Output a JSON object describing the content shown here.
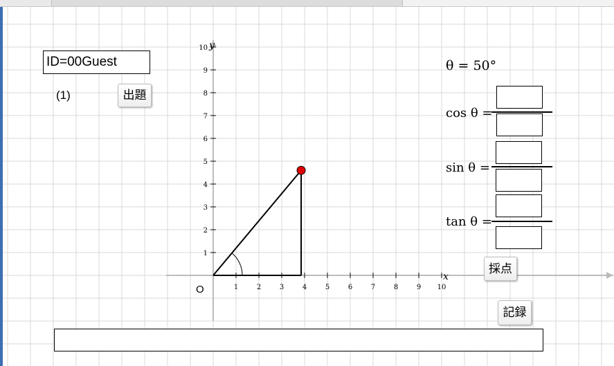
{
  "browser": {
    "tab_title": "",
    "right_text": ""
  },
  "app": {
    "user_id": "ID=00Guest",
    "question_number": "(1)",
    "new_question_label": "出題",
    "grade_label": "採点",
    "record_label": "記録",
    "status_text": ""
  },
  "problem": {
    "theta_text": "θ = 50°",
    "theta_degrees": 50,
    "labels": {
      "cos": "cos θ =",
      "sin": "sin θ =",
      "tan": "tan θ ="
    },
    "answers": {
      "cos_numerator": "",
      "cos_denominator": "",
      "sin_numerator": "",
      "sin_denominator": "",
      "tan_numerator": "",
      "tan_denominator": ""
    }
  },
  "graph": {
    "x_label": "x",
    "y_label": "y",
    "origin_label": "O",
    "x_ticks": [
      "1",
      "2",
      "3",
      "4",
      "5",
      "6",
      "7",
      "8",
      "9",
      "10"
    ],
    "y_ticks": [
      "1",
      "2",
      "3",
      "4",
      "5",
      "6",
      "7",
      "8",
      "9",
      "10"
    ],
    "point": {
      "x": 3.85,
      "y": 4.6
    },
    "colors": {
      "point": "#e00000",
      "grid": "#d9d9d9",
      "axis": "#bcbcbc"
    }
  }
}
